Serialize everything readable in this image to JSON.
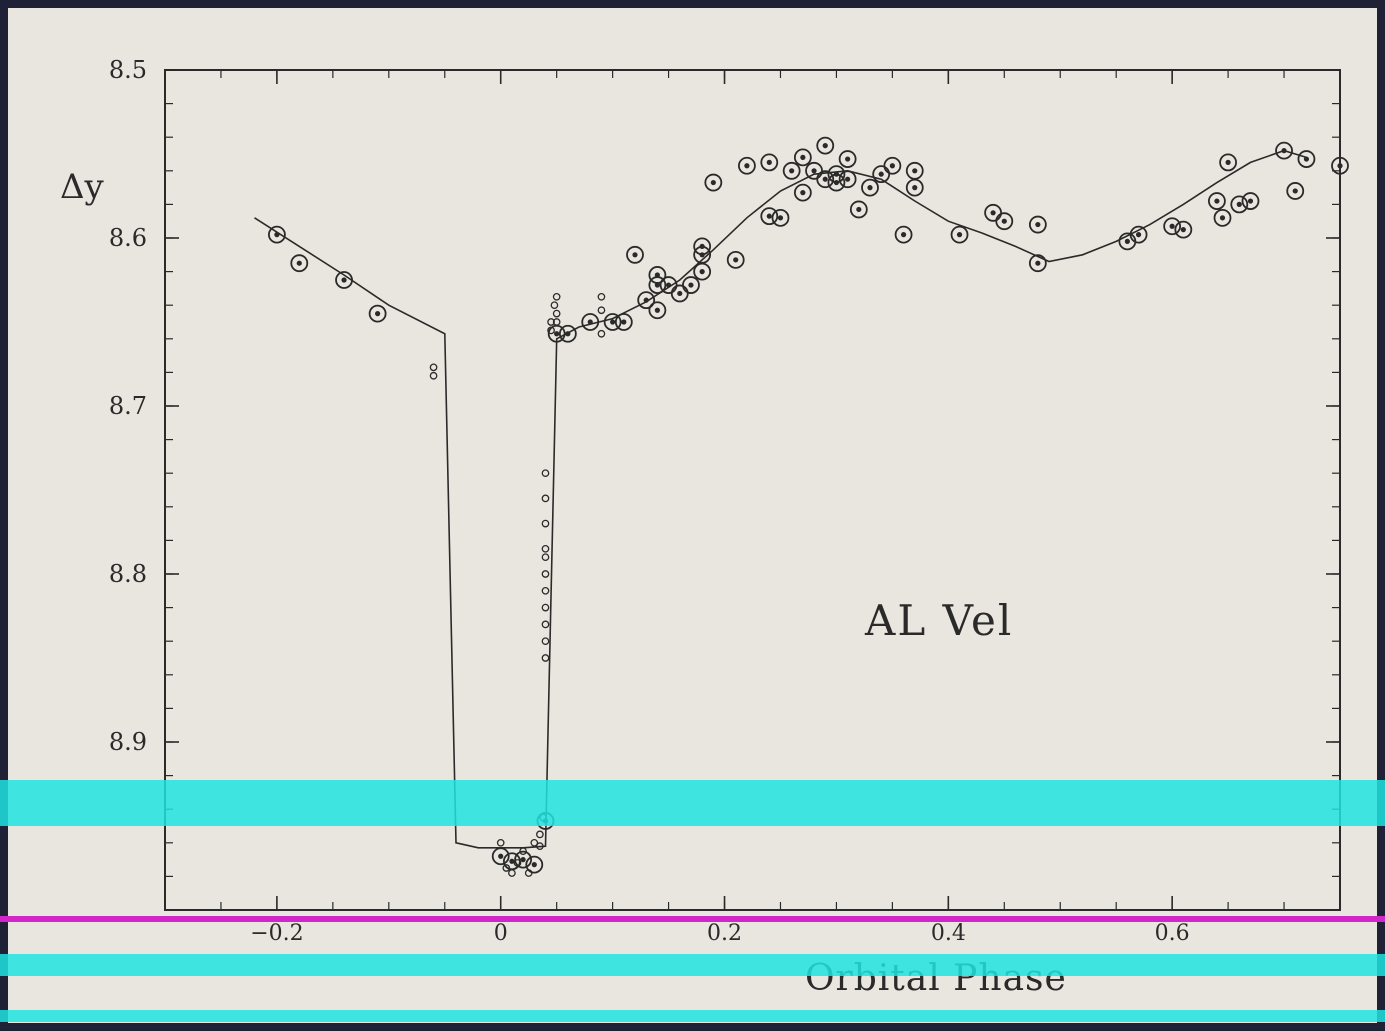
{
  "chart_data": {
    "type": "scatter",
    "title": "",
    "xlabel": "Orbital Phase",
    "ylabel": "Δy",
    "annotation": "AL Vel",
    "xlim": [
      -0.3,
      0.75
    ],
    "ylim": [
      8.5,
      9.0
    ],
    "y_inverted": true,
    "x_ticks": [
      {
        "value": -0.2,
        "label": "−0.2"
      },
      {
        "value": 0,
        "label": "0"
      },
      {
        "value": 0.2,
        "label": "0.2"
      },
      {
        "value": 0.4,
        "label": "0.4"
      },
      {
        "value": 0.6,
        "label": "0.6"
      }
    ],
    "y_ticks": [
      {
        "value": 8.5,
        "label": "8.5"
      },
      {
        "value": 8.6,
        "label": "8.6"
      },
      {
        "value": 8.7,
        "label": "8.7"
      },
      {
        "value": 8.8,
        "label": "8.8"
      },
      {
        "value": 8.9,
        "label": "8.9"
      }
    ],
    "grid": false,
    "series": [
      {
        "marker": "circled-dot",
        "points": [
          [
            -0.2,
            8.598
          ],
          [
            -0.18,
            8.615
          ],
          [
            -0.14,
            8.625
          ],
          [
            -0.11,
            8.645
          ],
          [
            0.0,
            8.968
          ],
          [
            0.01,
            8.971
          ],
          [
            0.02,
            8.97
          ],
          [
            0.03,
            8.973
          ],
          [
            0.04,
            8.947
          ],
          [
            0.05,
            8.657
          ],
          [
            0.06,
            8.657
          ],
          [
            0.08,
            8.65
          ],
          [
            0.1,
            8.65
          ],
          [
            0.11,
            8.65
          ],
          [
            0.12,
            8.61
          ],
          [
            0.13,
            8.637
          ],
          [
            0.14,
            8.622
          ],
          [
            0.14,
            8.628
          ],
          [
            0.14,
            8.643
          ],
          [
            0.15,
            8.628
          ],
          [
            0.16,
            8.633
          ],
          [
            0.17,
            8.628
          ],
          [
            0.18,
            8.62
          ],
          [
            0.18,
            8.61
          ],
          [
            0.18,
            8.605
          ],
          [
            0.19,
            8.567
          ],
          [
            0.21,
            8.613
          ],
          [
            0.22,
            8.557
          ],
          [
            0.24,
            8.555
          ],
          [
            0.24,
            8.587
          ],
          [
            0.25,
            8.588
          ],
          [
            0.26,
            8.56
          ],
          [
            0.27,
            8.552
          ],
          [
            0.27,
            8.573
          ],
          [
            0.28,
            8.56
          ],
          [
            0.29,
            8.545
          ],
          [
            0.29,
            8.565
          ],
          [
            0.3,
            8.567
          ],
          [
            0.3,
            8.562
          ],
          [
            0.31,
            8.565
          ],
          [
            0.31,
            8.553
          ],
          [
            0.32,
            8.583
          ],
          [
            0.33,
            8.57
          ],
          [
            0.34,
            8.562
          ],
          [
            0.35,
            8.557
          ],
          [
            0.36,
            8.598
          ],
          [
            0.37,
            8.57
          ],
          [
            0.37,
            8.56
          ],
          [
            0.41,
            8.598
          ],
          [
            0.44,
            8.585
          ],
          [
            0.45,
            8.59
          ],
          [
            0.48,
            8.592
          ],
          [
            0.48,
            8.615
          ],
          [
            0.56,
            8.602
          ],
          [
            0.57,
            8.598
          ],
          [
            0.6,
            8.593
          ],
          [
            0.61,
            8.595
          ],
          [
            0.64,
            8.578
          ],
          [
            0.645,
            8.588
          ],
          [
            0.65,
            8.555
          ],
          [
            0.66,
            8.58
          ],
          [
            0.67,
            8.578
          ],
          [
            0.7,
            8.548
          ],
          [
            0.71,
            8.572
          ],
          [
            0.72,
            8.553
          ],
          [
            0.75,
            8.557
          ]
        ]
      },
      {
        "marker": "small-circle",
        "points": [
          [
            -0.06,
            8.677
          ],
          [
            -0.06,
            8.682
          ],
          [
            0.0,
            8.96
          ],
          [
            0.005,
            8.975
          ],
          [
            0.01,
            8.978
          ],
          [
            0.015,
            8.972
          ],
          [
            0.02,
            8.965
          ],
          [
            0.025,
            8.978
          ],
          [
            0.03,
            8.96
          ],
          [
            0.035,
            8.962
          ],
          [
            0.035,
            8.955
          ],
          [
            0.038,
            8.945
          ],
          [
            0.04,
            8.74
          ],
          [
            0.04,
            8.755
          ],
          [
            0.04,
            8.77
          ],
          [
            0.04,
            8.785
          ],
          [
            0.04,
            8.79
          ],
          [
            0.04,
            8.8
          ],
          [
            0.04,
            8.81
          ],
          [
            0.04,
            8.82
          ],
          [
            0.04,
            8.83
          ],
          [
            0.04,
            8.84
          ],
          [
            0.04,
            8.85
          ],
          [
            0.045,
            8.65
          ],
          [
            0.045,
            8.655
          ],
          [
            0.048,
            8.64
          ],
          [
            0.05,
            8.635
          ],
          [
            0.05,
            8.645
          ],
          [
            0.05,
            8.65
          ],
          [
            0.09,
            8.635
          ],
          [
            0.09,
            8.643
          ],
          [
            0.09,
            8.657
          ]
        ]
      }
    ],
    "model_curve": [
      [
        -0.22,
        8.588
      ],
      [
        -0.14,
        8.622
      ],
      [
        -0.1,
        8.64
      ],
      [
        -0.05,
        8.657
      ],
      [
        -0.04,
        8.96
      ],
      [
        -0.02,
        8.963
      ],
      [
        0.0,
        8.963
      ],
      [
        0.02,
        8.963
      ],
      [
        0.04,
        8.962
      ],
      [
        0.05,
        8.66
      ],
      [
        0.07,
        8.653
      ],
      [
        0.1,
        8.648
      ],
      [
        0.13,
        8.638
      ],
      [
        0.16,
        8.625
      ],
      [
        0.19,
        8.607
      ],
      [
        0.22,
        8.588
      ],
      [
        0.25,
        8.572
      ],
      [
        0.28,
        8.562
      ],
      [
        0.31,
        8.56
      ],
      [
        0.34,
        8.565
      ],
      [
        0.37,
        8.578
      ],
      [
        0.4,
        8.59
      ],
      [
        0.43,
        8.597
      ],
      [
        0.46,
        8.605
      ],
      [
        0.49,
        8.614
      ],
      [
        0.52,
        8.61
      ],
      [
        0.55,
        8.602
      ],
      [
        0.58,
        8.592
      ],
      [
        0.61,
        8.58
      ],
      [
        0.64,
        8.567
      ],
      [
        0.67,
        8.555
      ],
      [
        0.7,
        8.548
      ],
      [
        0.72,
        8.552
      ]
    ]
  }
}
